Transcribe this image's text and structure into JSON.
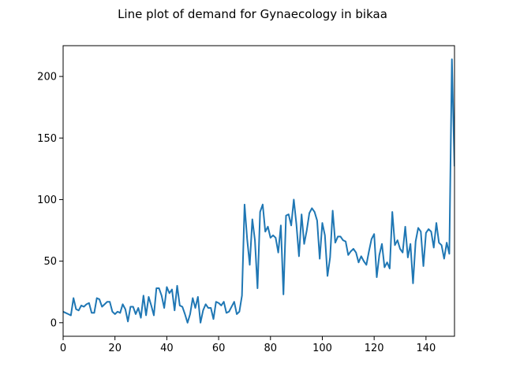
{
  "chart_data": {
    "type": "line",
    "title": "Line plot of demand for Gynaecology in bikaa",
    "xlabel": "",
    "ylabel": "",
    "xlim": [
      0,
      151
    ],
    "ylim": [
      -11,
      225
    ],
    "xticks": [
      0,
      20,
      40,
      60,
      80,
      100,
      120,
      140
    ],
    "yticks": [
      0,
      50,
      100,
      150,
      200
    ],
    "grid": false,
    "series": [
      {
        "color": "#1f77b4",
        "x": [
          0,
          1,
          2,
          3,
          4,
          5,
          6,
          7,
          8,
          9,
          10,
          11,
          12,
          13,
          14,
          15,
          16,
          17,
          18,
          19,
          20,
          21,
          22,
          23,
          24,
          25,
          26,
          27,
          28,
          29,
          30,
          31,
          32,
          33,
          34,
          35,
          36,
          37,
          38,
          39,
          40,
          41,
          42,
          43,
          44,
          45,
          46,
          47,
          48,
          49,
          50,
          51,
          52,
          53,
          54,
          55,
          56,
          57,
          58,
          59,
          60,
          61,
          62,
          63,
          64,
          65,
          66,
          67,
          68,
          69,
          70,
          71,
          72,
          73,
          74,
          75,
          76,
          77,
          78,
          79,
          80,
          81,
          82,
          83,
          84,
          85,
          86,
          87,
          88,
          89,
          90,
          91,
          92,
          93,
          94,
          95,
          96,
          97,
          98,
          99,
          100,
          101,
          102,
          103,
          104,
          105,
          106,
          107,
          108,
          109,
          110,
          111,
          112,
          113,
          114,
          115,
          116,
          117,
          118,
          119,
          120,
          121,
          122,
          123,
          124,
          125,
          126,
          127,
          128,
          129,
          130,
          131,
          132,
          133,
          134,
          135,
          136,
          137,
          138,
          139,
          140,
          141,
          142,
          143,
          144,
          145,
          146,
          147,
          148,
          149,
          150,
          151
        ],
        "values": [
          9,
          8,
          7,
          6,
          20,
          11,
          10,
          14,
          13,
          15,
          16,
          8,
          8,
          20,
          19,
          13,
          15,
          17,
          17,
          9,
          7,
          9,
          8,
          15,
          11,
          1,
          13,
          13,
          7,
          12,
          4,
          22,
          6,
          21,
          14,
          6,
          28,
          28,
          22,
          12,
          29,
          24,
          27,
          10,
          30,
          14,
          13,
          7,
          0,
          7,
          20,
          12,
          21,
          0,
          10,
          15,
          12,
          12,
          3,
          17,
          16,
          14,
          17,
          8,
          9,
          13,
          17,
          7,
          9,
          22,
          96,
          68,
          47,
          84,
          67,
          28,
          90,
          96,
          74,
          78,
          69,
          71,
          69,
          57,
          79,
          23,
          87,
          88,
          79,
          100,
          80,
          54,
          88,
          64,
          75,
          89,
          93,
          90,
          83,
          52,
          81,
          71,
          38,
          53,
          91,
          65,
          70,
          70,
          67,
          66,
          55,
          58,
          60,
          57,
          49,
          54,
          50,
          47,
          58,
          68,
          72,
          37,
          55,
          64,
          45,
          49,
          44,
          90,
          63,
          67,
          60,
          57,
          78,
          53,
          64,
          32,
          66,
          77,
          74,
          46,
          73,
          76,
          74,
          61,
          81,
          65,
          63,
          52,
          65,
          56,
          214,
          127
        ]
      }
    ]
  }
}
